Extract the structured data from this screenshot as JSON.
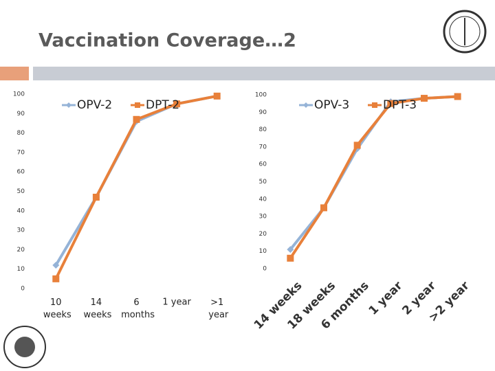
{
  "title": "Vaccination Coverage…2",
  "chart_data": [
    {
      "type": "line",
      "categories": [
        "10 weeks",
        "14 weeks",
        "6 months",
        "1 year",
        ">1 year"
      ],
      "series": [
        {
          "name": "OPV-2",
          "color": "#95b3d7",
          "marker": "diamond",
          "values": [
            12,
            47,
            86,
            95,
            99
          ]
        },
        {
          "name": "DPT-2",
          "color": "#e8803a",
          "marker": "square",
          "values": [
            5,
            47,
            87,
            95,
            99
          ]
        }
      ],
      "ylim": [
        0,
        100
      ],
      "yticks": [
        0,
        10,
        20,
        30,
        40,
        50,
        60,
        70,
        80,
        90,
        100
      ]
    },
    {
      "type": "line",
      "categories": [
        "14 weeks",
        "18 weeks",
        "6 months",
        "1 year",
        "2 year",
        ">2 year"
      ],
      "series": [
        {
          "name": "OPV-3",
          "color": "#95b3d7",
          "marker": "diamond",
          "values": [
            11,
            35,
            69,
            96,
            98,
            99
          ]
        },
        {
          "name": "DPT-3",
          "color": "#e8803a",
          "marker": "square",
          "values": [
            6,
            35,
            71,
            95,
            98,
            99
          ]
        }
      ],
      "ylim": [
        0,
        100
      ],
      "yticks": [
        0,
        10,
        20,
        30,
        40,
        50,
        60,
        70,
        80,
        90,
        100
      ]
    }
  ]
}
